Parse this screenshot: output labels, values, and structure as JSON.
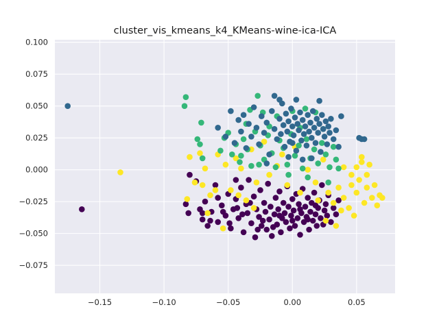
{
  "chart_data": {
    "type": "scatter",
    "title": "cluster_vis_kmeans_k4_KMeans-wine-ica-ICA",
    "xlabel": "",
    "ylabel": "",
    "xlim": [
      -0.185,
      0.08
    ],
    "ylim": [
      -0.097,
      0.102
    ],
    "xticks": [
      -0.15,
      -0.1,
      -0.05,
      0.0,
      0.05
    ],
    "xtick_labels": [
      "−0.15",
      "−0.10",
      "−0.05",
      "0.00",
      "0.05"
    ],
    "yticks": [
      -0.075,
      -0.05,
      -0.025,
      0.0,
      0.025,
      0.05,
      0.075,
      0.1
    ],
    "ytick_labels": [
      "−0.075",
      "−0.050",
      "−0.025",
      "0.000",
      "0.025",
      "0.050",
      "0.075",
      "0.100"
    ],
    "grid": true,
    "style": "seaborn-darkgrid",
    "colors": {
      "background": "#eaeaf2",
      "grid": "#ffffff",
      "cluster_0": "#440154",
      "cluster_1": "#31688e",
      "cluster_2": "#35b779",
      "cluster_3": "#fde725"
    },
    "series": [
      {
        "cluster": 0,
        "color": "#440154",
        "points": [
          [
            -0.164,
            -0.031
          ],
          [
            -0.083,
            -0.027
          ],
          [
            -0.075,
            -0.009
          ],
          [
            -0.072,
            -0.031
          ],
          [
            -0.07,
            -0.039
          ],
          [
            -0.068,
            -0.025
          ],
          [
            -0.066,
            -0.044
          ],
          [
            -0.063,
            -0.033
          ],
          [
            -0.06,
            -0.012
          ],
          [
            -0.058,
            -0.041
          ],
          [
            -0.055,
            -0.028
          ],
          [
            -0.052,
            -0.036
          ],
          [
            -0.05,
            -0.019
          ],
          [
            -0.048,
            -0.046
          ],
          [
            -0.046,
            -0.031
          ],
          [
            -0.044,
            -0.023
          ],
          [
            -0.042,
            -0.038
          ],
          [
            -0.04,
            -0.014
          ],
          [
            -0.038,
            -0.049
          ],
          [
            -0.036,
            -0.027
          ],
          [
            -0.035,
            -0.034
          ],
          [
            -0.034,
            -0.008
          ],
          [
            -0.032,
            -0.042
          ],
          [
            -0.03,
            -0.021
          ],
          [
            -0.029,
            -0.053
          ],
          [
            -0.028,
            -0.031
          ],
          [
            -0.026,
            -0.037
          ],
          [
            -0.025,
            -0.016
          ],
          [
            -0.024,
            -0.044
          ],
          [
            -0.022,
            -0.026
          ],
          [
            -0.021,
            -0.033
          ],
          [
            -0.02,
            -0.047
          ],
          [
            -0.019,
            -0.011
          ],
          [
            -0.018,
            -0.039
          ],
          [
            -0.017,
            -0.029
          ],
          [
            -0.016,
            -0.052
          ],
          [
            -0.014,
            -0.035
          ],
          [
            -0.013,
            -0.022
          ],
          [
            -0.012,
            -0.043
          ],
          [
            -0.011,
            -0.031
          ],
          [
            -0.01,
            -0.017
          ],
          [
            -0.009,
            -0.049
          ],
          [
            -0.008,
            -0.038
          ],
          [
            -0.007,
            -0.026
          ],
          [
            -0.006,
            -0.034
          ],
          [
            -0.005,
            -0.041
          ],
          [
            -0.004,
            -0.013
          ],
          [
            -0.003,
            -0.029
          ],
          [
            -0.002,
            -0.046
          ],
          [
            -0.001,
            -0.036
          ],
          [
            0.0,
            -0.023
          ],
          [
            0.001,
            -0.032
          ],
          [
            0.002,
            -0.044
          ],
          [
            0.003,
            -0.019
          ],
          [
            0.004,
            -0.038
          ],
          [
            0.005,
            -0.027
          ],
          [
            0.006,
            -0.051
          ],
          [
            0.007,
            -0.034
          ],
          [
            0.008,
            -0.015
          ],
          [
            0.009,
            -0.041
          ],
          [
            0.01,
            -0.029
          ],
          [
            0.011,
            -0.037
          ],
          [
            0.012,
            -0.022
          ],
          [
            0.013,
            -0.047
          ],
          [
            0.014,
            -0.033
          ],
          [
            0.015,
            -0.026
          ],
          [
            0.016,
            -0.04
          ],
          [
            0.017,
            -0.018
          ],
          [
            0.018,
            -0.035
          ],
          [
            0.019,
            -0.044
          ],
          [
            0.02,
            -0.03
          ],
          [
            0.021,
            -0.024
          ],
          [
            0.022,
            -0.038
          ],
          [
            0.023,
            -0.012
          ],
          [
            0.024,
            -0.043
          ],
          [
            0.025,
            -0.032
          ],
          [
            0.026,
            -0.027
          ],
          [
            0.027,
            -0.036
          ],
          [
            0.028,
            -0.02
          ],
          [
            0.03,
            -0.041
          ],
          [
            0.032,
            -0.03
          ],
          [
            0.034,
            -0.035
          ],
          [
            0.036,
            -0.024
          ],
          [
            -0.044,
            -0.008
          ],
          [
            -0.07,
            -0.034
          ],
          [
            -0.064,
            -0.04
          ],
          [
            -0.058,
            -0.022
          ],
          [
            -0.054,
            -0.033
          ],
          [
            -0.049,
            -0.042
          ],
          [
            -0.043,
            -0.03
          ],
          [
            -0.039,
            -0.035
          ],
          [
            -0.033,
            -0.026
          ],
          [
            -0.027,
            -0.047
          ],
          [
            -0.023,
            -0.04
          ],
          [
            -0.015,
            -0.045
          ],
          [
            -0.01,
            -0.036
          ],
          [
            0.0,
            -0.04
          ],
          [
            0.006,
            -0.031
          ],
          [
            0.012,
            -0.039
          ],
          [
            0.018,
            -0.028
          ],
          [
            -0.08,
            -0.004
          ],
          [
            -0.081,
            -0.034
          ]
        ]
      },
      {
        "cluster": 1,
        "color": "#31688e",
        "points": [
          [
            -0.175,
            0.05
          ],
          [
            -0.058,
            0.033
          ],
          [
            -0.052,
            0.026
          ],
          [
            -0.048,
            0.046
          ],
          [
            -0.045,
            0.021
          ],
          [
            -0.042,
            0.039
          ],
          [
            -0.04,
            0.03
          ],
          [
            -0.038,
            0.043
          ],
          [
            -0.036,
            0.017
          ],
          [
            -0.034,
            0.036
          ],
          [
            -0.032,
            0.026
          ],
          [
            -0.03,
            0.049
          ],
          [
            -0.028,
            0.033
          ],
          [
            -0.026,
            0.02
          ],
          [
            -0.024,
            0.042
          ],
          [
            -0.022,
            0.029
          ],
          [
            -0.02,
            0.037
          ],
          [
            -0.018,
            0.012
          ],
          [
            -0.016,
            0.046
          ],
          [
            -0.014,
            0.032
          ],
          [
            -0.012,
            0.024
          ],
          [
            -0.01,
            0.04
          ],
          [
            -0.009,
            0.028
          ],
          [
            -0.008,
            0.052
          ],
          [
            -0.007,
            0.035
          ],
          [
            -0.006,
            0.018
          ],
          [
            -0.005,
            0.044
          ],
          [
            -0.004,
            0.03
          ],
          [
            -0.003,
            0.038
          ],
          [
            -0.002,
            0.022
          ],
          [
            -0.001,
            0.048
          ],
          [
            0.0,
            0.034
          ],
          [
            0.001,
            0.027
          ],
          [
            0.002,
            0.041
          ],
          [
            0.003,
            0.015
          ],
          [
            0.004,
            0.036
          ],
          [
            0.005,
            0.031
          ],
          [
            0.006,
            0.045
          ],
          [
            0.007,
            0.023
          ],
          [
            0.008,
            0.039
          ],
          [
            0.009,
            0.028
          ],
          [
            0.01,
            0.034
          ],
          [
            0.011,
            0.019
          ],
          [
            0.012,
            0.043
          ],
          [
            0.013,
            0.03
          ],
          [
            0.014,
            0.037
          ],
          [
            0.015,
            0.025
          ],
          [
            0.016,
            0.046
          ],
          [
            0.017,
            0.033
          ],
          [
            0.018,
            0.021
          ],
          [
            0.019,
            0.04
          ],
          [
            0.02,
            0.029
          ],
          [
            0.021,
            0.036
          ],
          [
            0.022,
            0.014
          ],
          [
            0.023,
            0.043
          ],
          [
            0.024,
            0.032
          ],
          [
            0.025,
            0.026
          ],
          [
            0.026,
            0.038
          ],
          [
            0.027,
            0.02
          ],
          [
            0.028,
            0.034
          ],
          [
            0.029,
            0.029
          ],
          [
            0.03,
            0.04
          ],
          [
            0.032,
            0.024
          ],
          [
            0.034,
            0.031
          ],
          [
            0.036,
            0.018
          ],
          [
            0.038,
            0.042
          ],
          [
            0.052,
            0.025
          ],
          [
            0.054,
            0.024
          ],
          [
            0.056,
            0.024
          ],
          [
            -0.014,
            0.058
          ],
          [
            -0.01,
            0.055
          ],
          [
            0.003,
            0.055
          ],
          [
            0.021,
            0.054
          ],
          [
            -0.003,
            0.01
          ],
          [
            0.008,
            0.008
          ],
          [
            0.015,
            0.009
          ],
          [
            -0.02,
            0.005
          ],
          [
            0.0,
            0.021
          ]
        ]
      },
      {
        "cluster": 2,
        "color": "#35b779",
        "points": [
          [
            -0.083,
            0.057
          ],
          [
            -0.084,
            0.05
          ],
          [
            -0.074,
            0.024
          ],
          [
            -0.072,
            0.02
          ],
          [
            -0.071,
            0.037
          ],
          [
            -0.07,
            0.009
          ],
          [
            -0.056,
            0.015
          ],
          [
            -0.053,
            0.025
          ],
          [
            -0.05,
            0.029
          ],
          [
            -0.047,
            0.012
          ],
          [
            -0.044,
            0.02
          ],
          [
            -0.041,
            0.006
          ],
          [
            -0.038,
            0.024
          ],
          [
            -0.035,
            0.016
          ],
          [
            -0.032,
            0.003
          ],
          [
            -0.029,
            0.03
          ],
          [
            -0.027,
            0.058
          ],
          [
            -0.025,
            0.019
          ],
          [
            -0.022,
            0.008
          ],
          [
            -0.019,
            0.027
          ],
          [
            -0.016,
            0.013
          ],
          [
            -0.013,
            0.002
          ],
          [
            -0.01,
            0.023
          ],
          [
            -0.007,
            0.017
          ],
          [
            -0.004,
            0.004
          ],
          [
            -0.001,
            0.028
          ],
          [
            0.002,
            0.011
          ],
          [
            0.005,
            0.019
          ],
          [
            0.008,
            0.001
          ],
          [
            0.011,
            0.024
          ],
          [
            0.014,
            0.009
          ],
          [
            0.017,
            0.016
          ],
          [
            0.02,
            0.005
          ],
          [
            0.023,
            0.021
          ],
          [
            0.026,
            0.012
          ],
          [
            0.029,
            0.002
          ],
          [
            0.032,
            0.018
          ],
          [
            0.034,
            0.008
          ],
          [
            0.036,
            0.001
          ],
          [
            -0.033,
            0.047
          ],
          [
            -0.023,
            0.045
          ],
          [
            -0.012,
            0.042
          ],
          [
            0.0,
            0.046
          ],
          [
            0.01,
            0.048
          ],
          [
            0.018,
            0.045
          ],
          [
            -0.003,
            -0.004
          ],
          [
            0.012,
            -0.006
          ],
          [
            0.028,
            -0.01
          ],
          [
            -0.036,
            0.036
          ],
          [
            -0.018,
            0.034
          ],
          [
            0.006,
            0.033
          ],
          [
            0.024,
            0.032
          ],
          [
            -0.04,
            0.011
          ],
          [
            -0.026,
            0.004
          ]
        ]
      },
      {
        "cluster": 3,
        "color": "#fde725",
        "points": [
          [
            -0.134,
            -0.002
          ],
          [
            -0.082,
            -0.023
          ],
          [
            -0.08,
            0.01
          ],
          [
            -0.076,
            -0.01
          ],
          [
            -0.072,
            0.013
          ],
          [
            -0.068,
            0.001
          ],
          [
            -0.064,
            -0.02
          ],
          [
            -0.06,
            -0.016
          ],
          [
            -0.058,
            0.012
          ],
          [
            -0.054,
            -0.046
          ],
          [
            -0.052,
            0.004
          ],
          [
            -0.048,
            -0.016
          ],
          [
            -0.044,
            0.009
          ],
          [
            -0.04,
            0.001
          ],
          [
            -0.036,
            -0.024
          ],
          [
            -0.032,
            0.016
          ],
          [
            -0.028,
            -0.01
          ],
          [
            -0.022,
            0.022
          ],
          [
            -0.018,
            -0.004
          ],
          [
            -0.012,
            0.003
          ],
          [
            -0.008,
            0.012
          ],
          [
            -0.004,
            -0.012
          ],
          [
            0.002,
            0.018
          ],
          [
            0.006,
            -0.018
          ],
          [
            0.012,
            0.0
          ],
          [
            0.018,
            -0.01
          ],
          [
            0.024,
            0.008
          ],
          [
            0.028,
            -0.018
          ],
          [
            0.032,
            -0.026
          ],
          [
            0.036,
            -0.014
          ],
          [
            0.04,
            -0.022
          ],
          [
            0.044,
            -0.03
          ],
          [
            0.046,
            -0.012
          ],
          [
            0.048,
            -0.036
          ],
          [
            0.05,
            -0.018
          ],
          [
            0.052,
            -0.008
          ],
          [
            0.054,
            0.006
          ],
          [
            0.056,
            -0.026
          ],
          [
            0.058,
            -0.014
          ],
          [
            0.06,
            0.004
          ],
          [
            0.062,
            -0.022
          ],
          [
            0.064,
            -0.012
          ],
          [
            0.066,
            -0.028
          ],
          [
            0.068,
            -0.02
          ],
          [
            0.07,
            -0.022
          ],
          [
            0.046,
            -0.004
          ],
          [
            0.05,
            0.002
          ],
          [
            0.038,
            -0.032
          ],
          [
            0.026,
            -0.04
          ],
          [
            0.034,
            -0.044
          ],
          [
            -0.07,
            -0.012
          ],
          [
            -0.066,
            -0.034
          ],
          [
            -0.042,
            -0.02
          ],
          [
            -0.03,
            -0.03
          ],
          [
            0.02,
            -0.024
          ],
          [
            0.04,
            0.002
          ],
          [
            0.054,
            0.01
          ],
          [
            0.058,
            -0.004
          ]
        ]
      }
    ]
  }
}
